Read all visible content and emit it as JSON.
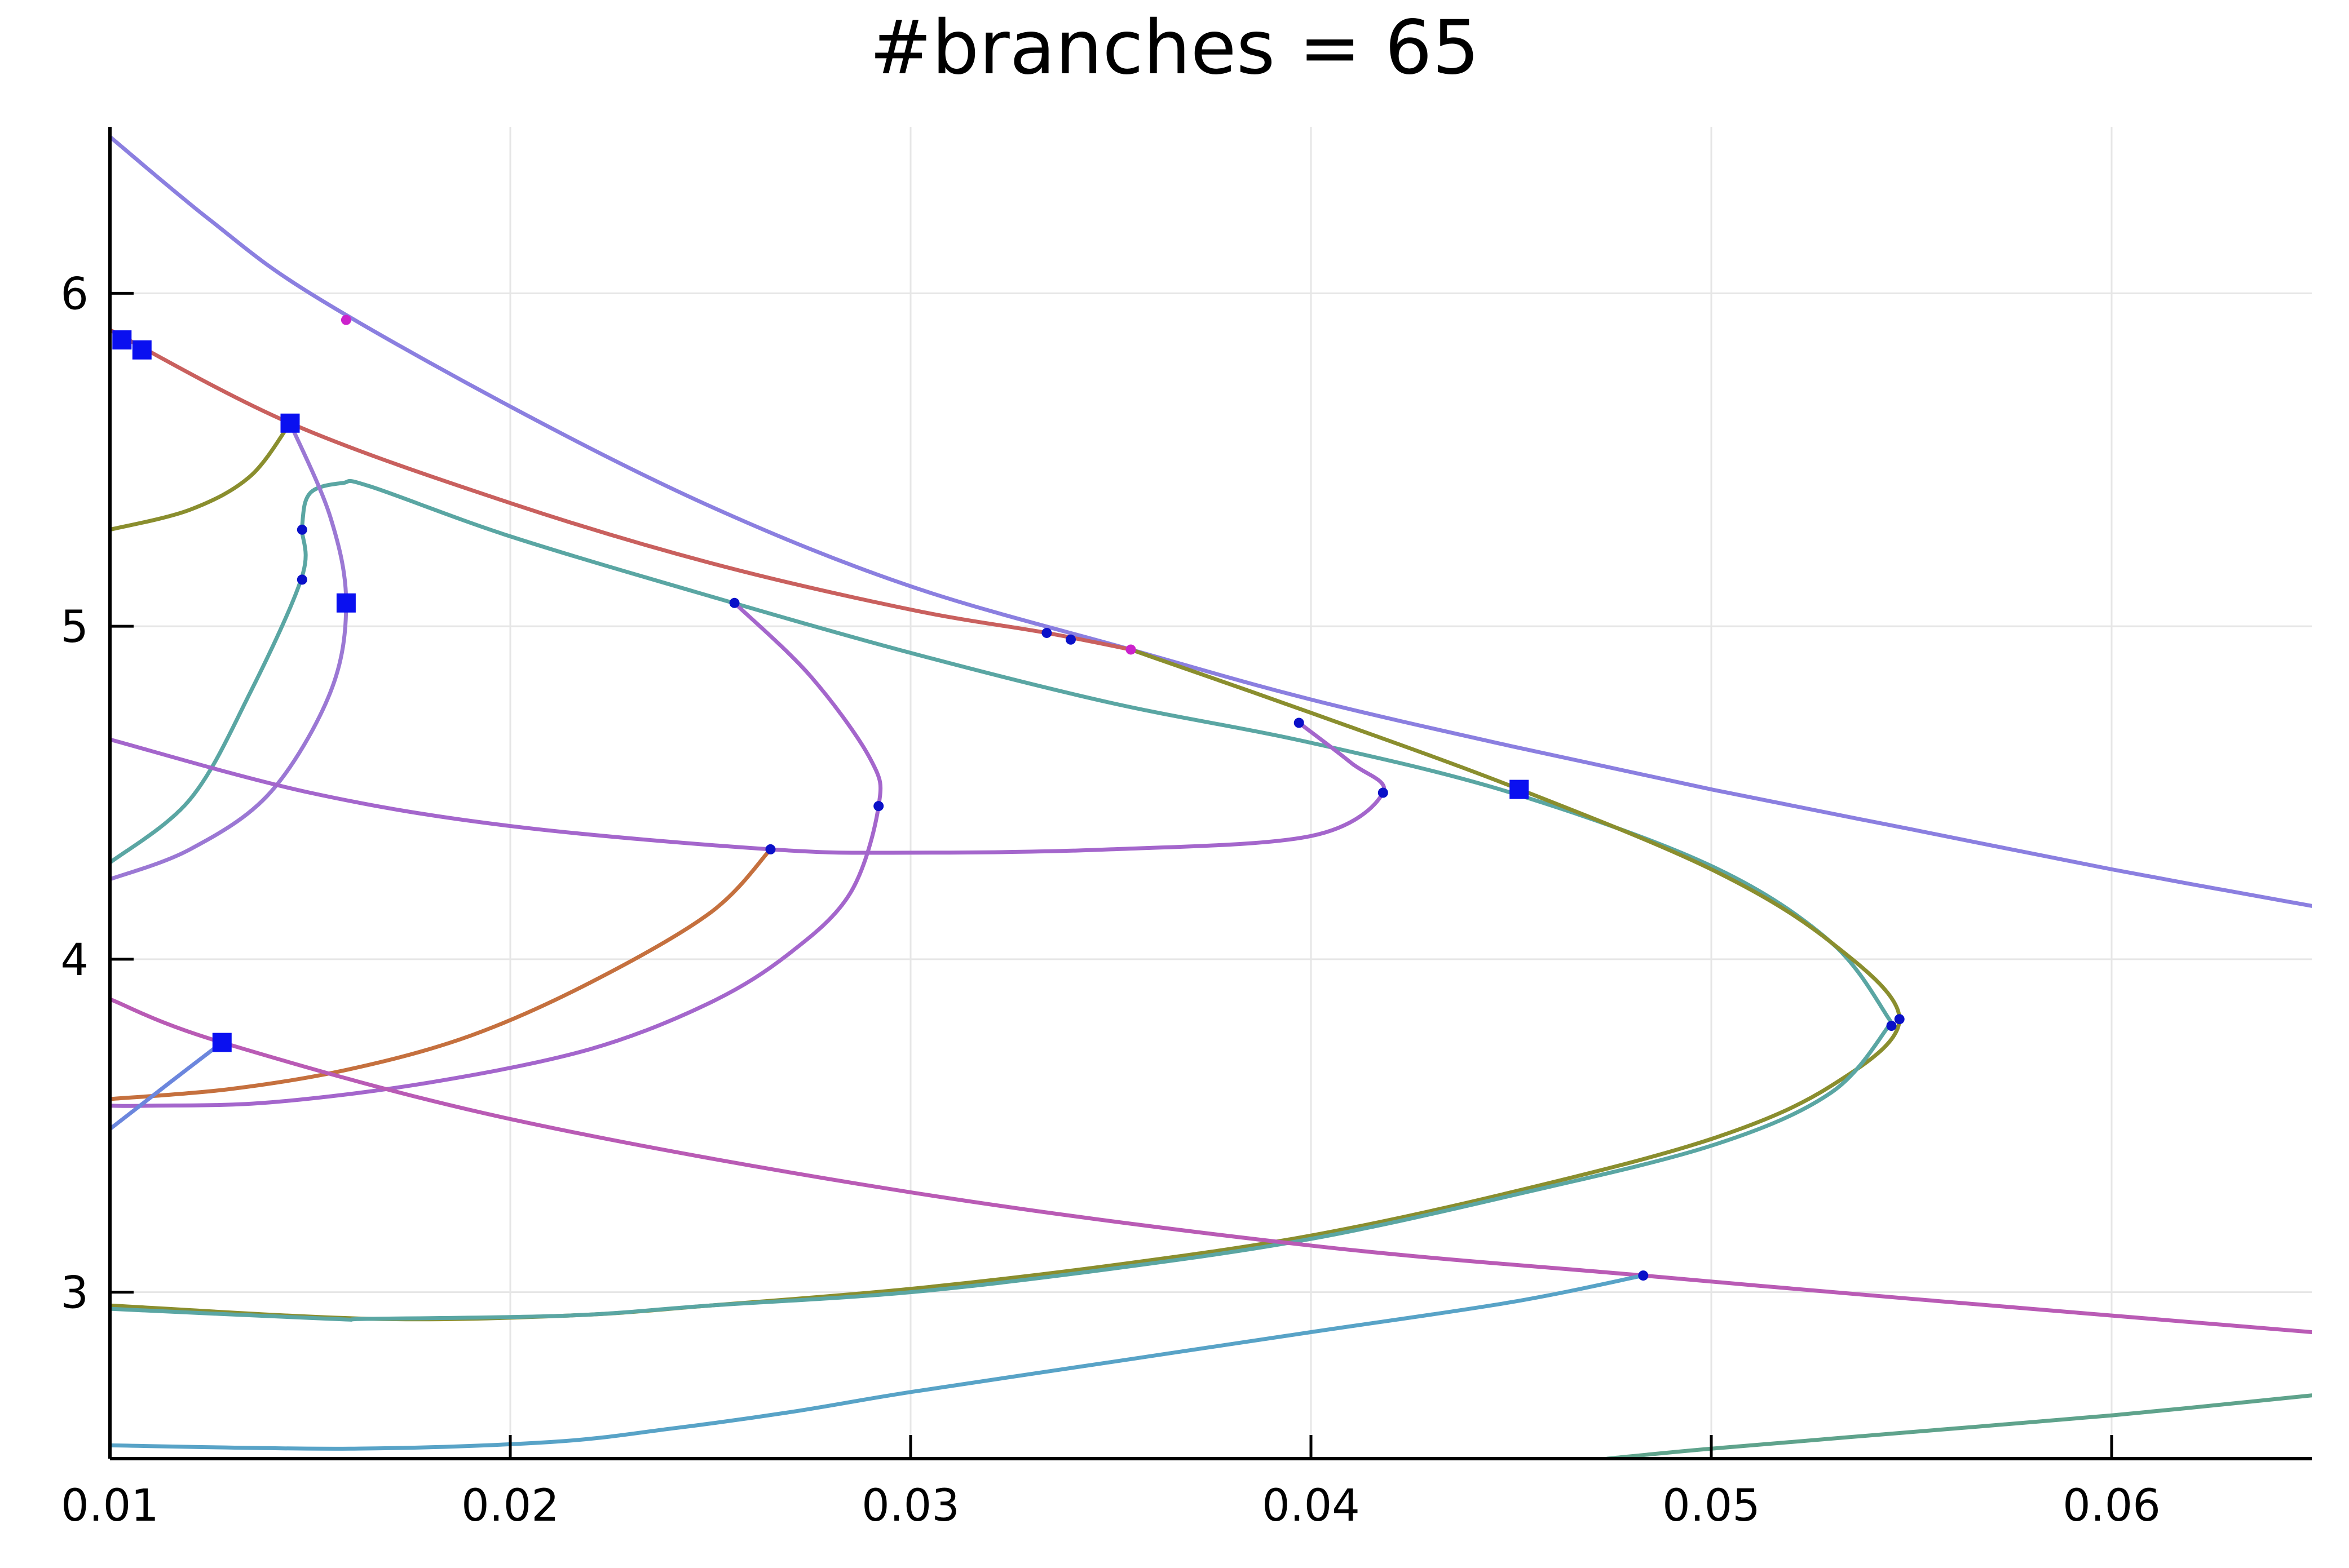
{
  "chart_data": {
    "type": "line",
    "title": "#branches = 65",
    "xlabel": "",
    "ylabel": "",
    "xlim": [
      0.01,
      0.065
    ],
    "ylim": [
      2.5,
      6.5
    ],
    "grid": true,
    "legend": "none",
    "x_ticks": [
      0.01,
      0.02,
      0.03,
      0.04,
      0.05,
      0.06
    ],
    "x_tick_labels": [
      "0.01",
      "0.02",
      "0.03",
      "0.04",
      "0.05",
      "0.06"
    ],
    "y_ticks": [
      3,
      4,
      5,
      6
    ],
    "y_tick_labels": [
      "3",
      "4",
      "5",
      "6"
    ],
    "series": [
      {
        "color": "#8b7fe0",
        "points": [
          [
            0.01,
            6.47
          ],
          [
            0.0125,
            6.22
          ],
          [
            0.015,
            6.0
          ],
          [
            0.02,
            5.66
          ],
          [
            0.025,
            5.36
          ],
          [
            0.03,
            5.12
          ],
          [
            0.0355,
            4.93
          ],
          [
            0.04,
            4.78
          ],
          [
            0.045,
            4.64
          ],
          [
            0.05,
            4.51
          ],
          [
            0.055,
            4.39
          ],
          [
            0.06,
            4.27
          ],
          [
            0.065,
            4.16
          ]
        ]
      },
      {
        "color": "#c9605e",
        "points": [
          [
            0.01,
            5.89
          ],
          [
            0.0145,
            5.61
          ],
          [
            0.02,
            5.37
          ],
          [
            0.025,
            5.19
          ],
          [
            0.03,
            5.05
          ],
          [
            0.0334,
            4.98
          ],
          [
            0.0355,
            4.93
          ]
        ]
      },
      {
        "color": "#8a8e2e",
        "points": [
          [
            0.01,
            5.29
          ],
          [
            0.012,
            5.35
          ],
          [
            0.0135,
            5.45
          ],
          [
            0.0145,
            5.61
          ]
        ]
      },
      {
        "color": "#5aa6a3",
        "points": [
          [
            0.01,
            4.29
          ],
          [
            0.012,
            4.48
          ],
          [
            0.0135,
            4.8
          ],
          [
            0.0148,
            5.15
          ],
          [
            0.0148,
            5.3
          ],
          [
            0.015,
            5.4
          ],
          [
            0.0158,
            5.43
          ],
          [
            0.0165,
            5.42
          ],
          [
            0.02,
            5.27
          ],
          [
            0.025,
            5.09
          ],
          [
            0.03,
            4.92
          ],
          [
            0.035,
            4.77
          ],
          [
            0.04,
            4.65
          ],
          [
            0.045,
            4.5
          ],
          [
            0.05,
            4.28
          ],
          [
            0.053,
            4.05
          ],
          [
            0.0545,
            3.81
          ]
        ]
      },
      {
        "color": "#9b78d4",
        "points": [
          [
            0.01,
            4.24
          ],
          [
            0.012,
            4.33
          ],
          [
            0.014,
            4.5
          ],
          [
            0.0155,
            4.8
          ],
          [
            0.0159,
            5.07
          ],
          [
            0.0155,
            5.33
          ],
          [
            0.0145,
            5.61
          ]
        ]
      },
      {
        "color": "#a466cc",
        "points": [
          [
            0.0256,
            5.07
          ],
          [
            0.0275,
            4.85
          ],
          [
            0.029,
            4.6
          ],
          [
            0.0292,
            4.46
          ],
          [
            0.0285,
            4.2
          ],
          [
            0.027,
            4.02
          ],
          [
            0.025,
            3.87
          ],
          [
            0.022,
            3.73
          ],
          [
            0.018,
            3.63
          ],
          [
            0.014,
            3.57
          ],
          [
            0.011,
            3.56
          ],
          [
            0.01,
            3.56
          ]
        ]
      },
      {
        "color": "#a466cc",
        "points": [
          [
            0.01,
            4.66
          ],
          [
            0.015,
            4.5
          ],
          [
            0.02,
            4.4
          ],
          [
            0.0265,
            4.33
          ],
          [
            0.03,
            4.32
          ],
          [
            0.035,
            4.33
          ],
          [
            0.04,
            4.37
          ],
          [
            0.0418,
            4.5
          ],
          [
            0.041,
            4.59
          ],
          [
            0.0397,
            4.71
          ]
        ]
      },
      {
        "color": "#c5703e",
        "points": [
          [
            0.0265,
            4.33
          ],
          [
            0.025,
            4.14
          ],
          [
            0.022,
            3.93
          ],
          [
            0.019,
            3.77
          ],
          [
            0.016,
            3.67
          ],
          [
            0.013,
            3.61
          ],
          [
            0.01,
            3.58
          ]
        ]
      },
      {
        "color": "#8a8e2e",
        "points": [
          [
            0.0355,
            4.93
          ],
          [
            0.04,
            4.74
          ],
          [
            0.045,
            4.52
          ],
          [
            0.05,
            4.27
          ],
          [
            0.053,
            4.05
          ],
          [
            0.0547,
            3.82
          ],
          [
            0.053,
            3.62
          ],
          [
            0.05,
            3.46
          ],
          [
            0.045,
            3.3
          ],
          [
            0.04,
            3.17
          ],
          [
            0.035,
            3.08
          ],
          [
            0.03,
            3.01
          ],
          [
            0.025,
            2.96
          ],
          [
            0.0215,
            2.93
          ],
          [
            0.0165,
            2.92
          ],
          [
            0.01,
            2.96
          ]
        ]
      },
      {
        "color": "#5aa6a3",
        "points": [
          [
            0.0545,
            3.81
          ],
          [
            0.053,
            3.6
          ],
          [
            0.05,
            3.44
          ],
          [
            0.045,
            3.29
          ],
          [
            0.04,
            3.16
          ],
          [
            0.035,
            3.07
          ],
          [
            0.03,
            3.0
          ],
          [
            0.025,
            2.96
          ],
          [
            0.0215,
            2.93
          ],
          [
            0.0165,
            2.92
          ],
          [
            0.0155,
            2.92
          ],
          [
            0.01,
            2.95
          ]
        ]
      },
      {
        "color": "#b95bb5",
        "points": [
          [
            0.01,
            3.88
          ],
          [
            0.0128,
            3.75
          ],
          [
            0.02,
            3.52
          ],
          [
            0.03,
            3.3
          ],
          [
            0.04,
            3.14
          ],
          [
            0.0483,
            3.05
          ],
          [
            0.055,
            2.98
          ],
          [
            0.065,
            2.88
          ]
        ]
      },
      {
        "color": "#6b86dd",
        "points": [
          [
            0.01,
            3.49
          ],
          [
            0.0115,
            3.63
          ],
          [
            0.0128,
            3.75
          ]
        ]
      },
      {
        "color": "#58a3c7",
        "points": [
          [
            0.01,
            2.54
          ],
          [
            0.016,
            2.53
          ],
          [
            0.021,
            2.55
          ],
          [
            0.024,
            2.59
          ],
          [
            0.027,
            2.64
          ],
          [
            0.03,
            2.7
          ],
          [
            0.035,
            2.79
          ],
          [
            0.04,
            2.88
          ],
          [
            0.045,
            2.97
          ],
          [
            0.0483,
            3.05
          ]
        ]
      },
      {
        "color": "#5fa38c",
        "points": [
          [
            0.0474,
            2.5
          ],
          [
            0.05,
            2.53
          ],
          [
            0.055,
            2.58
          ],
          [
            0.06,
            2.63
          ],
          [
            0.065,
            2.69
          ]
        ]
      }
    ],
    "markers": {
      "small_points": [
        [
          0.0148,
          5.29
        ],
        [
          0.0148,
          5.14
        ],
        [
          0.0256,
          5.07
        ],
        [
          0.0334,
          4.98
        ],
        [
          0.034,
          4.96
        ],
        [
          0.0397,
          4.71
        ],
        [
          0.0418,
          4.5
        ],
        [
          0.0292,
          4.46
        ],
        [
          0.0265,
          4.33
        ],
        [
          0.0545,
          3.8
        ],
        [
          0.0547,
          3.82
        ],
        [
          0.0483,
          3.05
        ]
      ],
      "small_points_magenta": [
        [
          0.0159,
          5.92
        ],
        [
          0.0355,
          4.93
        ]
      ],
      "squares": [
        [
          0.0103,
          5.86
        ],
        [
          0.0108,
          5.83
        ],
        [
          0.0145,
          5.61
        ],
        [
          0.0159,
          5.07
        ],
        [
          0.0128,
          3.75
        ],
        [
          0.0452,
          4.51
        ]
      ],
      "point_color": "#0a10c8",
      "magenta_color": "#cc22cc",
      "square_color": "#0a10f0"
    }
  }
}
